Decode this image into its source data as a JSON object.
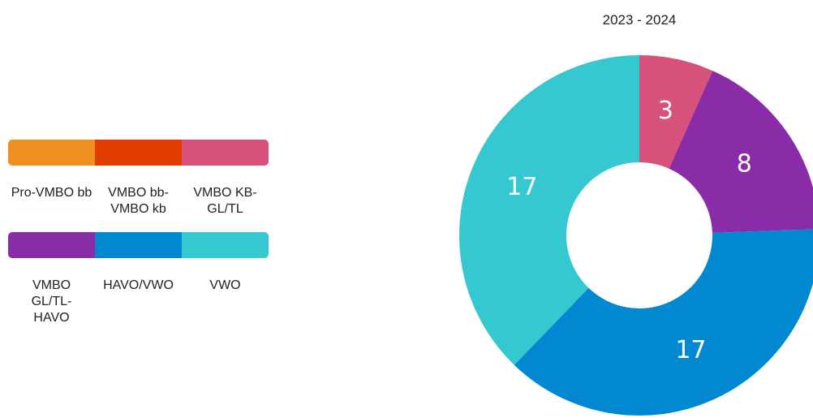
{
  "chart_data": {
    "type": "donut",
    "title": "2023 - 2024",
    "categories": [
      "Pro-VMBO bb",
      "VMBO bb-VMBO kb",
      "VMBO KB-GL/TL",
      "VMBO GL/TL-HAVO",
      "HAVO/VWO",
      "VWO"
    ],
    "values": [
      0,
      0,
      3,
      8,
      17,
      17
    ],
    "colors": [
      "#ef8f22",
      "#e03c00",
      "#d6527a",
      "#8a2ca8",
      "#0288d1",
      "#36c8d0"
    ],
    "legend": "left"
  }
}
